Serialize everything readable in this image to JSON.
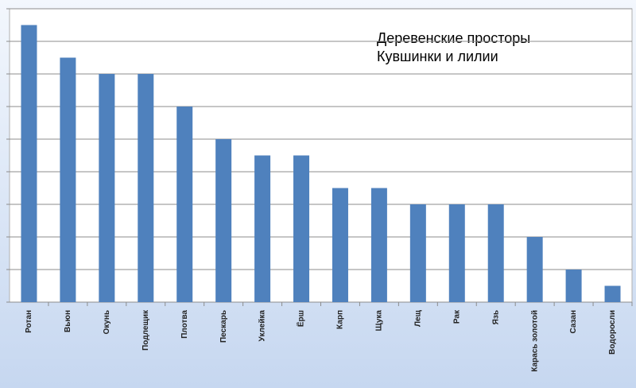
{
  "chart_data": {
    "type": "bar",
    "title": "Деревенские просторы",
    "subtitle": "Кувшинки и лилии",
    "categories": [
      "Ротан",
      "Вьюн",
      "Окунь",
      "Подлещик",
      "Плотва",
      "Пескарь",
      "Уклейка",
      "Ёрш",
      "Карп",
      "Щука",
      "Лещ",
      "Рак",
      "Язь",
      "Карась золотой",
      "Сазан",
      "Водоросли"
    ],
    "values": [
      8.5,
      7.5,
      7,
      7,
      6,
      5,
      4.5,
      4.5,
      3.5,
      3.5,
      3,
      3,
      3,
      2,
      1,
      0.5
    ],
    "color": "#4f81bd",
    "ylim": [
      0,
      9
    ],
    "yticks": [
      0,
      1,
      2,
      3,
      4,
      5,
      6,
      7,
      8,
      9
    ],
    "grid": true
  }
}
